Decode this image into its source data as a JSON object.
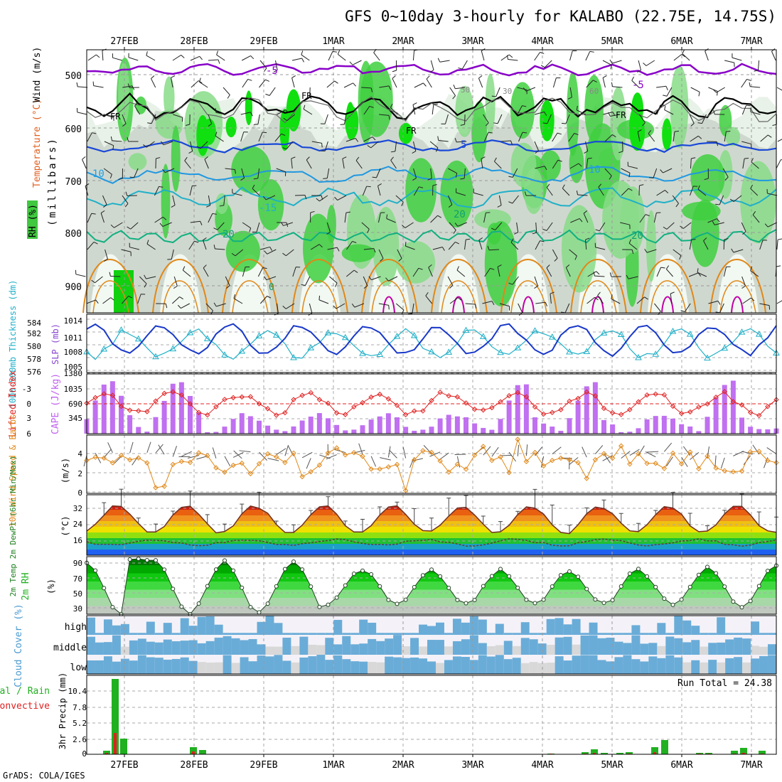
{
  "title": "GFS 0~10day 3-hourly for KALABO (22.75E, 14.75S)",
  "credit": "GrADS: COLA/IGES",
  "colors": {
    "purple": "#8800c8",
    "blue": "#1848d8",
    "cyan": "#20b0c8",
    "green": "#10a018",
    "orange": "#e08818",
    "red": "#e02020",
    "magenta": "#c000a8",
    "rh_green": "#2ad42a",
    "cloud_blue": "#6aacd8",
    "cloud_grey": "#d8d8d8",
    "cloud_white": "#f4f2f8"
  },
  "chart_data": [
    {
      "name": "upper-air",
      "type": "heatmap",
      "x_dates": [
        "27FEB",
        "28FEB",
        "29FEB",
        "1MAR",
        "2MAR",
        "3MAR",
        "4MAR",
        "5MAR",
        "6MAR",
        "7MAR"
      ],
      "ylabel": "(millibars)",
      "y_ticks": [
        "500",
        "600",
        "700",
        "800",
        "900"
      ],
      "legend": {
        "rh": "RH (%)",
        "temperature": "Temperature (°C)",
        "wind": "Wind (m/s)"
      },
      "contour_labels": [
        "-5",
        "-5",
        "FR",
        "FR",
        "FR",
        "FR",
        "5",
        "10",
        "10",
        "-15",
        "20",
        "20",
        "20",
        "50",
        "30",
        "60",
        "0"
      ]
    },
    {
      "name": "thickness-slp",
      "type": "line",
      "ylabel_left": "1000-500mb Thickness (dm)",
      "ylabel_right": "SLP (mb)",
      "thickness_ticks": [
        "584",
        "582",
        "580",
        "578",
        "576"
      ],
      "slp_ticks": [
        "1014",
        "1011",
        "1008",
        "1005"
      ]
    },
    {
      "name": "lifted-cape",
      "type": "bar",
      "ylabel_left": "Lifted Index",
      "ylabel_right": "CAPE (J/kg)",
      "li_ticks": [
        "-3",
        "0",
        "3",
        "6"
      ],
      "cape_ticks": [
        "1380",
        "1035",
        "690",
        "345"
      ]
    },
    {
      "name": "wind10m",
      "type": "line",
      "ylabel": "10m Wind Speed & Barbs",
      "yunit": "(m/s)",
      "y_ticks": [
        "4",
        "2",
        "0"
      ]
    },
    {
      "name": "temp2m",
      "type": "area",
      "ylabel": "2m Temp 2m DewPt (6hr Min/Max)",
      "yunit": "(°C)",
      "y_ticks": [
        "32",
        "24",
        "16"
      ]
    },
    {
      "name": "rh2m",
      "type": "area",
      "ylabel": "2m RH",
      "yunit": "(%)",
      "y_ticks": [
        "90",
        "70",
        "50",
        "30"
      ]
    },
    {
      "name": "cloud",
      "type": "heatmap",
      "ylabel": "Cloud Cover (%)",
      "levels": [
        "high",
        "middle",
        "low"
      ]
    },
    {
      "name": "precip",
      "type": "bar",
      "ylabel": "3hr Precip (mm)",
      "legend": [
        "Total / Rain",
        "Convective"
      ],
      "y_ticks": [
        "10.4",
        "7.8",
        "5.2",
        "2.6",
        "0"
      ],
      "annotation": "Run Total = 24.38"
    }
  ]
}
